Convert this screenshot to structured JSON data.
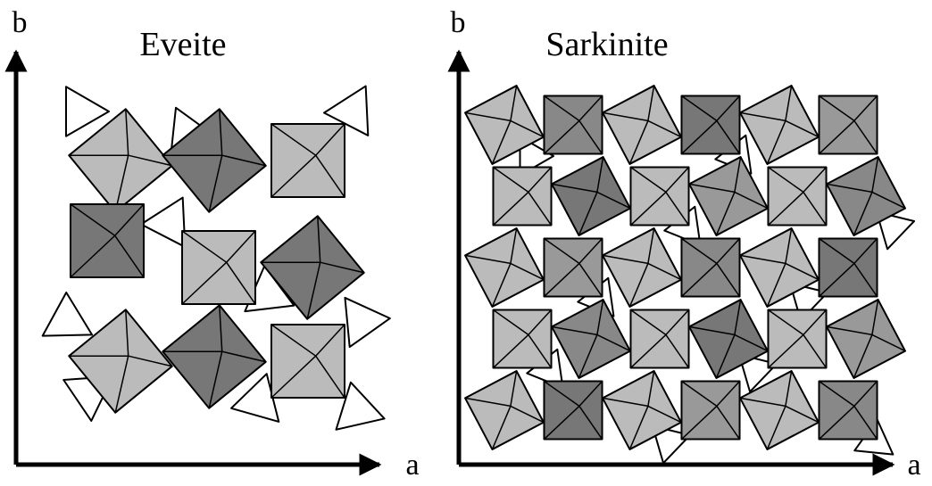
{
  "panels": [
    {
      "title": "Eveite",
      "x_axis_label": "a",
      "y_axis_label": "b"
    },
    {
      "title": "Sarkinite",
      "x_axis_label": "a",
      "y_axis_label": "b"
    }
  ]
}
